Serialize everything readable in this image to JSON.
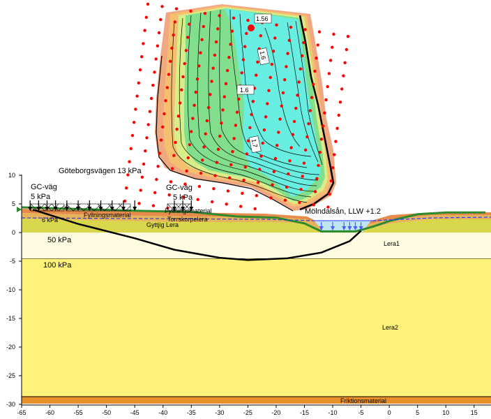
{
  "colors": {
    "lera1": "#fdfbe0",
    "lera2": "#fff27a",
    "friktion": "#e8902a",
    "surface_line": "#2d8a2d",
    "slip_circle": "#000000",
    "grid_dot": "#ff0000",
    "water": "#bfe6ee",
    "water_arrow": "#4a5cff",
    "fs_low": "#e87060",
    "fs_mid": "#7ddb8a",
    "fs_high": "#68eee0"
  },
  "axes": {
    "x": {
      "min": -65,
      "max": 17,
      "ticks": [
        -65,
        -60,
        -55,
        -50,
        -45,
        -40,
        -35,
        -30,
        -25,
        -20,
        -15,
        -10,
        -5,
        0,
        5,
        10,
        15
      ]
    },
    "y": {
      "min": -30,
      "max": 10,
      "ticks": [
        10,
        5,
        0,
        -5,
        -10,
        -15,
        -20,
        -25,
        -30
      ]
    }
  },
  "labels": {
    "goteborgsvagen": "Göteborgsvägen 13 kPa",
    "gc_vag_left": "GC-väg",
    "gc_vag_left_kpa": "5 kPa",
    "gc_vag_right": "GC-väg",
    "gc_vag_right_kpa": "5 kPa",
    "load_6kpa": "6 kPa",
    "load_50kpa": "50 kPa",
    "load_100kpa": "100 kPa",
    "molndalsan": "Mölndalsån, LLW +1.2",
    "lera1": "Lera1",
    "lera2": "Lera2",
    "friktionsmaterial": "Friktionsmaterial",
    "gyttja": "Gyttjig Lera",
    "torrskorpa": "Torrskorpelera",
    "fyllning": "Fyllningsmaterial",
    "fyllning_upper": "Fyllningsmaterial",
    "fs_min": "1.56",
    "fs_contour_a": "1.6",
    "fs_contour_b": "1.6",
    "fs_contour_c": "1.7"
  },
  "fs_min_point": {
    "x": -25.0,
    "y": 25.6
  },
  "load_arrows_x": [
    -63.5,
    -62,
    -60.5,
    -59,
    -57,
    -55,
    -53,
    -51,
    -49,
    -47,
    -45,
    -38,
    -36.5,
    -35
  ],
  "water_arrows_x": [
    -12,
    -10,
    -8,
    -7,
    -6,
    -5
  ],
  "ground_profile": [
    [
      -65,
      4.4
    ],
    [
      -45,
      3.8
    ],
    [
      -35,
      3.6
    ],
    [
      -27,
      2.8
    ],
    [
      -20,
      2.6
    ],
    [
      -15,
      1.6
    ],
    [
      -12,
      0.2
    ],
    [
      -6,
      0.2
    ],
    [
      -3,
      1.0
    ],
    [
      0,
      2.0
    ],
    [
      5,
      3.2
    ],
    [
      10,
      3.5
    ],
    [
      17,
      3.5
    ]
  ],
  "slip_circle": [
    [
      -63,
      4.0
    ],
    [
      -55,
      1.5
    ],
    [
      -45,
      -1.0
    ],
    [
      -38,
      -3.0
    ],
    [
      -30,
      -4.4
    ],
    [
      -25,
      -4.8
    ],
    [
      -18,
      -4.5
    ],
    [
      -12,
      -3.5
    ],
    [
      -7,
      -1.5
    ],
    [
      -5,
      0.3
    ]
  ]
}
